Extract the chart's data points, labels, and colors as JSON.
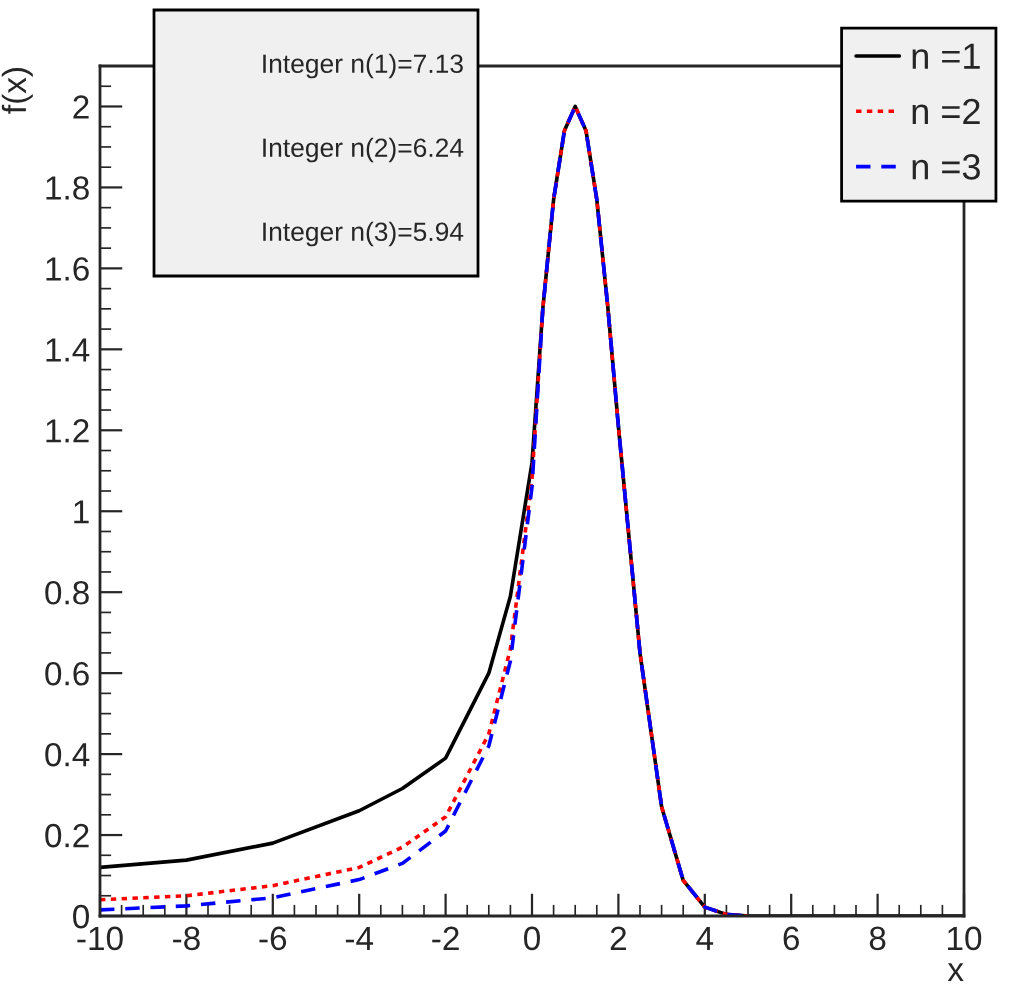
{
  "chart_data": {
    "type": "line",
    "xlabel": "x",
    "ylabel": "f(x)",
    "annotations": [
      "Integer n(1)=7.13",
      "Integer n(2)=6.24",
      "Integer n(3)=5.94"
    ],
    "x": [
      -10,
      -8,
      -6,
      -4,
      -3,
      -2,
      -1,
      -0.5,
      0,
      0.25,
      0.5,
      0.75,
      1,
      1.25,
      1.5,
      1.75,
      2,
      2.5,
      3,
      3.5,
      4,
      4.5,
      5,
      6,
      8,
      10
    ],
    "series": [
      {
        "name": "n =1",
        "color": "#000000",
        "line_style": "solid",
        "values": [
          0.12,
          0.138,
          0.18,
          0.26,
          0.315,
          0.39,
          0.6,
          0.79,
          1.12,
          1.5,
          1.77,
          1.94,
          2.0,
          1.94,
          1.77,
          1.51,
          1.21,
          0.65,
          0.27,
          0.088,
          0.022,
          0.004,
          0,
          0,
          0,
          0
        ]
      },
      {
        "name": "n =2",
        "color": "#ff0000",
        "line_style": "dotted",
        "values": [
          0.04,
          0.05,
          0.075,
          0.12,
          0.17,
          0.245,
          0.45,
          0.66,
          1.08,
          1.5,
          1.77,
          1.94,
          2.0,
          1.94,
          1.77,
          1.51,
          1.21,
          0.65,
          0.27,
          0.088,
          0.022,
          0.004,
          0,
          null,
          null,
          null
        ]
      },
      {
        "name": "n =3",
        "color": "#0000ff",
        "line_style": "dashed",
        "values": [
          0.015,
          0.025,
          0.045,
          0.09,
          0.13,
          0.21,
          0.42,
          0.63,
          1.06,
          1.5,
          1.77,
          1.94,
          2.0,
          1.94,
          1.77,
          1.51,
          1.21,
          0.65,
          0.27,
          0.088,
          0.022,
          0.004,
          0,
          null,
          null,
          null
        ]
      }
    ],
    "xlim": [
      -10,
      10
    ],
    "ylim": [
      0,
      2.1
    ],
    "xticks": [
      -10,
      -8,
      -6,
      -4,
      -2,
      0,
      2,
      4,
      6,
      8,
      10
    ],
    "yticks": [
      0,
      0.2,
      0.4,
      0.6,
      0.8,
      1,
      1.2,
      1.4,
      1.6,
      1.8,
      2
    ],
    "grid": false,
    "legend": "top right"
  }
}
